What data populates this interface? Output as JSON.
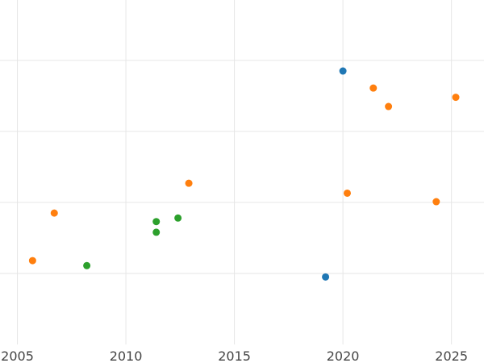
{
  "chart_data": {
    "type": "scatter",
    "title": "",
    "xlabel": "",
    "ylabel": "",
    "grid": true,
    "xlim": [
      2004.2,
      2026.5
    ],
    "ylim": [
      0,
      4.85
    ],
    "x_ticks": [
      2005,
      2010,
      2015,
      2020,
      2025
    ],
    "x_tick_labels": [
      "2005",
      "2010",
      "2015",
      "2020",
      "2025"
    ],
    "y_grid_values": [
      1,
      2,
      3,
      4
    ],
    "series": [
      {
        "color": "#1f77b4",
        "points": [
          {
            "x": 2020.0,
            "y": 3.85
          },
          {
            "x": 2019.2,
            "y": 0.95
          }
        ]
      },
      {
        "color": "#ff7f0e",
        "points": [
          {
            "x": 2005.7,
            "y": 1.18
          },
          {
            "x": 2006.7,
            "y": 1.85
          },
          {
            "x": 2012.9,
            "y": 2.27
          },
          {
            "x": 2020.2,
            "y": 2.13
          },
          {
            "x": 2021.4,
            "y": 3.61
          },
          {
            "x": 2022.1,
            "y": 3.35
          },
          {
            "x": 2024.3,
            "y": 2.01
          },
          {
            "x": 2025.2,
            "y": 3.48
          }
        ]
      },
      {
        "color": "#2ca02c",
        "points": [
          {
            "x": 2008.2,
            "y": 1.11
          },
          {
            "x": 2011.4,
            "y": 1.73
          },
          {
            "x": 2011.4,
            "y": 1.58
          },
          {
            "x": 2012.4,
            "y": 1.78
          }
        ]
      }
    ]
  }
}
